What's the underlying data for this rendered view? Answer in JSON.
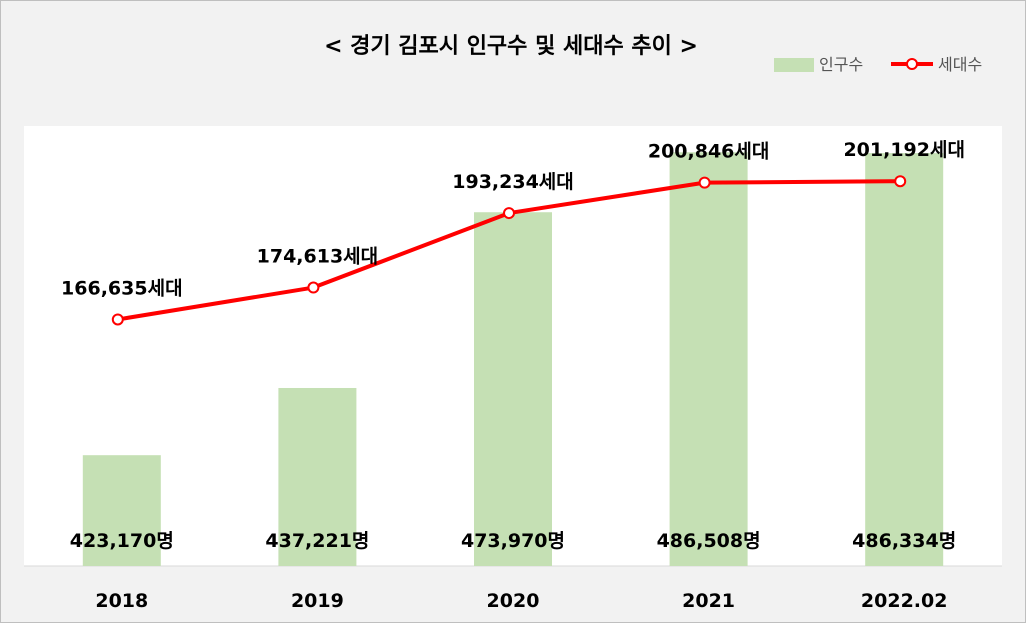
{
  "chart_data": {
    "type": "bar",
    "title": "< 경기 김포시 인구수 및 세대수 추이 >",
    "categories": [
      "2018",
      "2019",
      "2020",
      "2021",
      "2022.02"
    ],
    "series": [
      {
        "name": "인구수",
        "kind": "bar",
        "values": [
          423170,
          437221,
          473970,
          486508,
          486334
        ],
        "labels": [
          "423,170명",
          "437,221명",
          "473,970명",
          "486,508명",
          "486,334명"
        ],
        "color": "#c5e0b4"
      },
      {
        "name": "세대수",
        "kind": "line",
        "values": [
          166635,
          174613,
          193234,
          200846,
          201192
        ],
        "labels": [
          "166,635세대",
          "174,613세대",
          "193,234세대",
          "200,846세대",
          "201,192세대"
        ],
        "color": "#ff0000"
      }
    ],
    "bar_axis_range": [
      400000,
      492000
    ],
    "line_axis_range": [
      105000,
      215000
    ],
    "grid": false,
    "legend_position": "top-right"
  }
}
